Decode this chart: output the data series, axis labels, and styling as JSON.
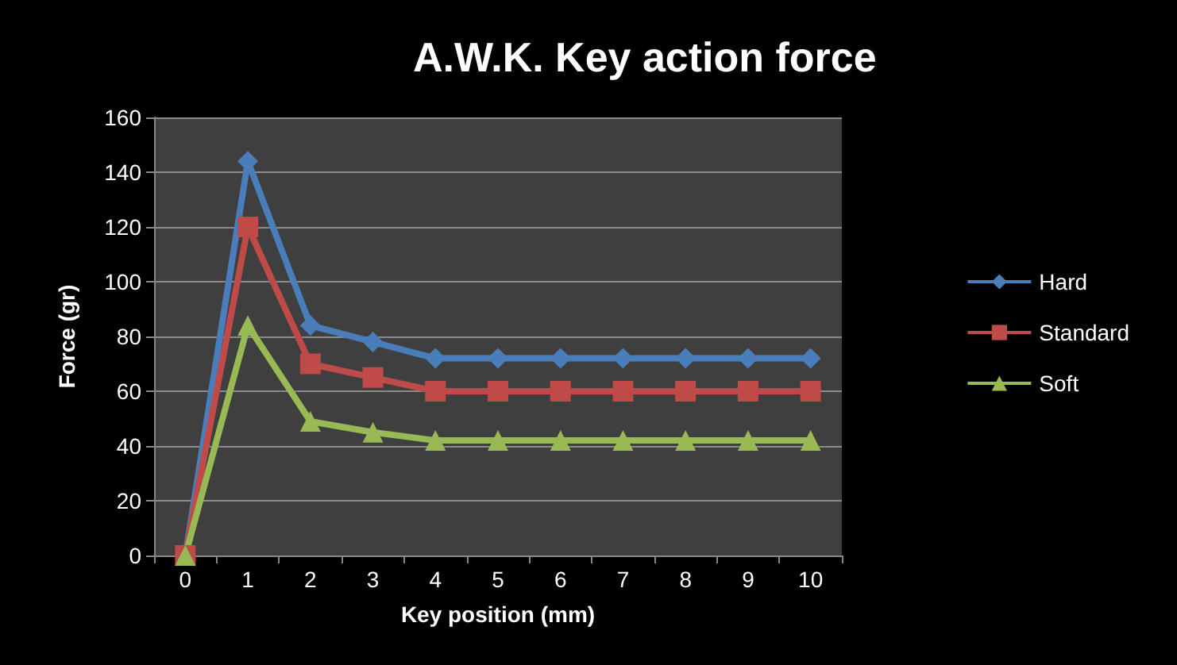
{
  "chart_data": {
    "type": "line",
    "title": "A.W.K. Key action force",
    "xlabel": "Key position (mm)",
    "ylabel": "Force (gr)",
    "categories": [
      "0",
      "1",
      "2",
      "3",
      "4",
      "5",
      "6",
      "7",
      "8",
      "9",
      "10"
    ],
    "series": [
      {
        "name": "Hard",
        "color": "#4a7ebb",
        "marker": "diamond",
        "values": [
          0,
          144,
          84,
          78,
          72,
          72,
          72,
          72,
          72,
          72,
          72
        ]
      },
      {
        "name": "Standard",
        "color": "#be4b48",
        "marker": "square",
        "values": [
          0,
          120,
          70,
          65,
          60,
          60,
          60,
          60,
          60,
          60,
          60
        ]
      },
      {
        "name": "Soft",
        "color": "#98b954",
        "marker": "triangle",
        "values": [
          0,
          84,
          49,
          45,
          42,
          42,
          42,
          42,
          42,
          42,
          42
        ]
      }
    ],
    "ylim": [
      0,
      160
    ],
    "yticks": [
      0,
      20,
      40,
      60,
      80,
      100,
      120,
      140,
      160
    ],
    "grid": "y",
    "legend": "right",
    "line_style": "solid"
  }
}
